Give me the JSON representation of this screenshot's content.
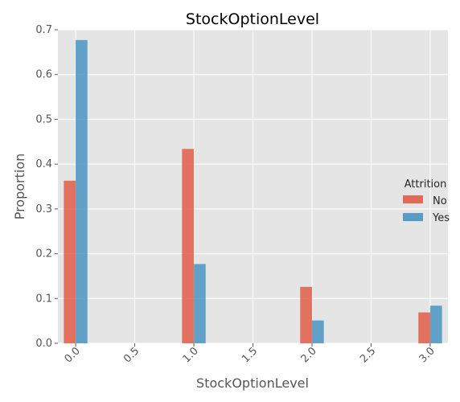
{
  "chart_data": {
    "type": "bar",
    "title": "StockOptionLevel",
    "xlabel": "StockOptionLevel",
    "ylabel": "Proportion",
    "x": [
      0,
      1,
      2,
      3
    ],
    "xlim": [
      -0.15,
      3.15
    ],
    "ylim": [
      0,
      0.7
    ],
    "xticks": [
      "0.0",
      "0.5",
      "1.0",
      "1.5",
      "2.0",
      "2.5",
      "3.0"
    ],
    "yticks": [
      "0.0",
      "0.1",
      "0.2",
      "0.3",
      "0.4",
      "0.5",
      "0.6",
      "0.7"
    ],
    "legend_title": "Attrition",
    "legend_position": "right",
    "grid": true,
    "series": [
      {
        "name": "No",
        "color": "#E24A33",
        "values": [
          0.363,
          0.434,
          0.126,
          0.069
        ]
      },
      {
        "name": "Yes",
        "color": "#348ABD",
        "values": [
          0.677,
          0.177,
          0.051,
          0.084
        ]
      }
    ]
  }
}
